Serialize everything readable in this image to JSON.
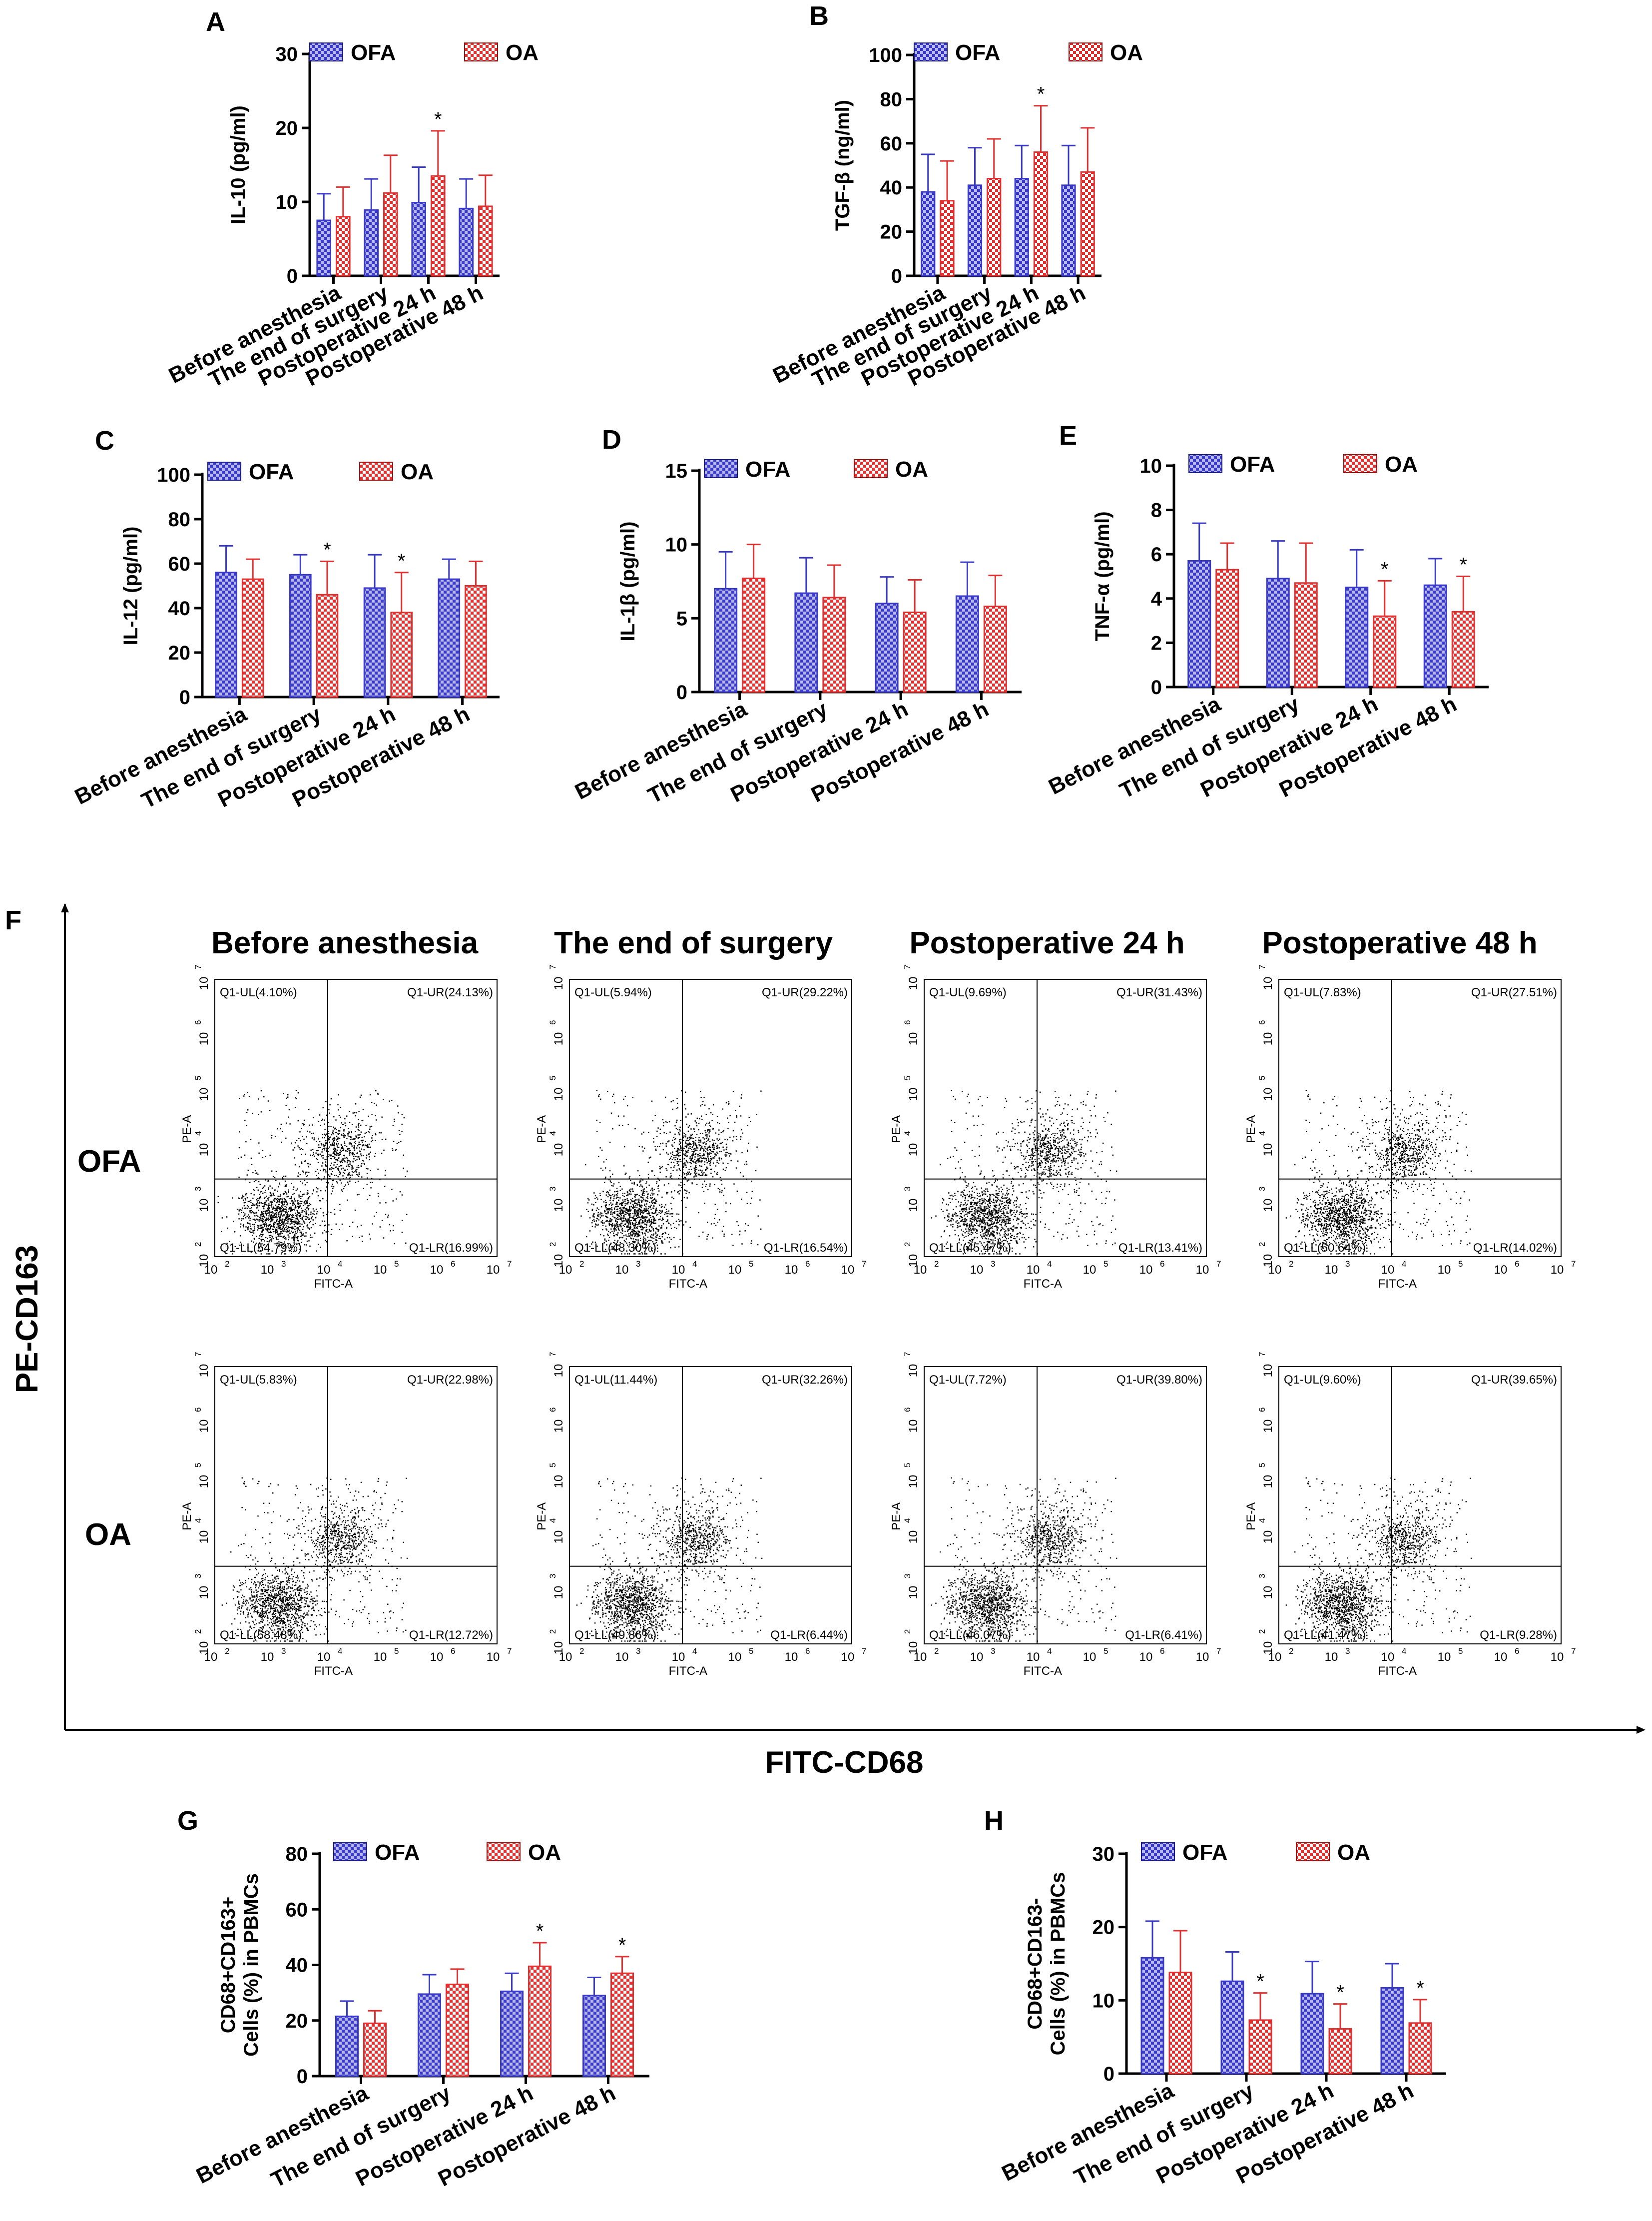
{
  "colors": {
    "ofa": "#3a3ac8",
    "ofa_dark": "#1a1a8a",
    "oa": "#e03030",
    "oa_dark": "#a01010",
    "axis": "#000000"
  },
  "chart_data": [
    {
      "id": "A",
      "type": "bar",
      "panel_label": "A",
      "ylabel": "IL-10 (pg/ml)",
      "ylim": [
        0,
        30
      ],
      "yticks": [
        0,
        10,
        20,
        30
      ],
      "categories": [
        "Before anesthesia",
        "The end of surgery",
        "Postoperative 24 h",
        "Postoperative 48 h"
      ],
      "series": [
        {
          "name": "OFA",
          "values": [
            7.5,
            8.9,
            9.9,
            9.1
          ],
          "errors": [
            3.6,
            4.2,
            4.8,
            4.0
          ]
        },
        {
          "name": "OA",
          "values": [
            8.0,
            11.2,
            13.5,
            9.4
          ],
          "errors": [
            4.0,
            5.1,
            6.1,
            4.2
          ]
        }
      ],
      "significant": [
        [
          1,
          2
        ]
      ]
    },
    {
      "id": "B",
      "type": "bar",
      "panel_label": "B",
      "ylabel": "TGF-β (ng/ml)",
      "ylim": [
        0,
        100
      ],
      "yticks": [
        0,
        20,
        40,
        60,
        80,
        100
      ],
      "categories": [
        "Before anesthesia",
        "The end of surgery",
        "Postoperative 24 h",
        "Postoperative 48 h"
      ],
      "series": [
        {
          "name": "OFA",
          "values": [
            38,
            41,
            44,
            41
          ],
          "errors": [
            17,
            17,
            15,
            18
          ]
        },
        {
          "name": "OA",
          "values": [
            34,
            44,
            56,
            47
          ],
          "errors": [
            18,
            18,
            21,
            20
          ]
        }
      ],
      "significant": [
        [
          1,
          2
        ]
      ]
    },
    {
      "id": "C",
      "type": "bar",
      "panel_label": "C",
      "ylabel": "IL-12 (pg/ml)",
      "ylim": [
        0,
        100
      ],
      "yticks": [
        0,
        20,
        40,
        60,
        80,
        100
      ],
      "categories": [
        "Before anesthesia",
        "The end of surgery",
        "Postoperative 24 h",
        "Postoperative 48 h"
      ],
      "series": [
        {
          "name": "OFA",
          "values": [
            56,
            55,
            49,
            53
          ],
          "errors": [
            12,
            9,
            15,
            9
          ]
        },
        {
          "name": "OA",
          "values": [
            53,
            46,
            38,
            50
          ],
          "errors": [
            9,
            15,
            18,
            11
          ]
        }
      ],
      "significant": [
        [
          1,
          1
        ],
        [
          1,
          2
        ]
      ]
    },
    {
      "id": "D",
      "type": "bar",
      "panel_label": "D",
      "ylabel": "IL-1β (pg/ml)",
      "ylim": [
        0,
        15
      ],
      "yticks": [
        0,
        5,
        10,
        15
      ],
      "categories": [
        "Before anesthesia",
        "The end of surgery",
        "Postoperative 24 h",
        "Postoperative 48 h"
      ],
      "series": [
        {
          "name": "OFA",
          "values": [
            7.0,
            6.7,
            6.0,
            6.5
          ],
          "errors": [
            2.5,
            2.4,
            1.8,
            2.3
          ]
        },
        {
          "name": "OA",
          "values": [
            7.7,
            6.4,
            5.4,
            5.8
          ],
          "errors": [
            2.3,
            2.2,
            2.2,
            2.1
          ]
        }
      ],
      "significant": []
    },
    {
      "id": "E",
      "type": "bar",
      "panel_label": "E",
      "ylabel": "TNF-α (pg/ml)",
      "ylim": [
        0,
        10
      ],
      "yticks": [
        0,
        2,
        4,
        6,
        8,
        10
      ],
      "categories": [
        "Before anesthesia",
        "The end of surgery",
        "Postoperative 24 h",
        "Postoperative 48 h"
      ],
      "series": [
        {
          "name": "OFA",
          "values": [
            5.7,
            4.9,
            4.5,
            4.6
          ],
          "errors": [
            1.7,
            1.7,
            1.7,
            1.2
          ]
        },
        {
          "name": "OA",
          "values": [
            5.3,
            4.7,
            3.2,
            3.4
          ],
          "errors": [
            1.2,
            1.8,
            1.6,
            1.6
          ]
        }
      ],
      "significant": [
        [
          1,
          2
        ],
        [
          1,
          3
        ]
      ]
    },
    {
      "id": "G",
      "type": "bar",
      "panel_label": "G",
      "ylabel_lines": [
        "CD68+CD163+",
        "Cells (%) in PBMCs"
      ],
      "ylim": [
        0,
        80
      ],
      "yticks": [
        0,
        20,
        40,
        60,
        80
      ],
      "categories": [
        "Before anesthesia",
        "The end of surgery",
        "Postoperative 24 h",
        "Postoperative 48 h"
      ],
      "series": [
        {
          "name": "OFA",
          "values": [
            21.5,
            29.5,
            30.5,
            29.0
          ],
          "errors": [
            5.5,
            7.0,
            6.5,
            6.5
          ]
        },
        {
          "name": "OA",
          "values": [
            19.0,
            33.0,
            39.5,
            37.0
          ],
          "errors": [
            4.5,
            5.5,
            8.5,
            6.0
          ]
        }
      ],
      "significant": [
        [
          1,
          2
        ],
        [
          1,
          3
        ]
      ]
    },
    {
      "id": "H",
      "type": "bar",
      "panel_label": "H",
      "ylabel_lines": [
        "CD68+CD163-",
        "Cells (%) in PBMCs"
      ],
      "ylim": [
        0,
        30
      ],
      "yticks": [
        0,
        10,
        20,
        30
      ],
      "categories": [
        "Before anesthesia",
        "The end of surgery",
        "Postoperative 24 h",
        "Postoperative 48 h"
      ],
      "series": [
        {
          "name": "OFA",
          "values": [
            15.8,
            12.6,
            10.9,
            11.7
          ],
          "errors": [
            5.0,
            4.0,
            4.4,
            3.3
          ]
        },
        {
          "name": "OA",
          "values": [
            13.8,
            7.3,
            6.1,
            6.9
          ],
          "errors": [
            5.7,
            3.7,
            3.4,
            3.2
          ]
        }
      ],
      "significant": [
        [
          1,
          1
        ],
        [
          1,
          2
        ],
        [
          1,
          3
        ]
      ]
    },
    {
      "id": "F",
      "type": "scatter",
      "panel_label": "F",
      "ylabel": "PE-CD163",
      "xlabel": "FITC-CD68",
      "column_titles": [
        "Before anesthesia",
        "The end of surgery",
        "Postoperative 24 h",
        "Postoperative 48 h"
      ],
      "row_labels": [
        "OFA",
        "OA"
      ],
      "plot_xlabel": "FITC-A",
      "plot_ylabel": "PE-A",
      "xtick_labels": [
        "10",
        "10",
        "10",
        "10",
        "10",
        "10"
      ],
      "xtick_exponents": [
        "2",
        "3",
        "4",
        "5",
        "6",
        "7"
      ],
      "ytick_labels": [
        "10",
        "10",
        "10",
        "10",
        "10",
        "10"
      ],
      "ytick_exponents": [
        "2",
        "3",
        "4",
        "5",
        "6",
        "7"
      ],
      "quadrants": [
        [
          {
            "UL": "Q1-UL(4.10%)",
            "UR": "Q1-UR(24.13%)",
            "LL": "Q1-LL(54.79%)",
            "LR": "Q1-LR(16.99%)"
          },
          {
            "UL": "Q1-UL(5.94%)",
            "UR": "Q1-UR(29.22%)",
            "LL": "Q1-LL(48.30%)",
            "LR": "Q1-LR(16.54%)"
          },
          {
            "UL": "Q1-UL(9.69%)",
            "UR": "Q1-UR(31.43%)",
            "LL": "Q1-LL(45.47%)",
            "LR": "Q1-LR(13.41%)"
          },
          {
            "UL": "Q1-UL(7.83%)",
            "UR": "Q1-UR(27.51%)",
            "LL": "Q1-LL(50.64%)",
            "LR": "Q1-LR(14.02%)"
          }
        ],
        [
          {
            "UL": "Q1-UL(5.83%)",
            "UR": "Q1-UR(22.98%)",
            "LL": "Q1-LL(58.48%)",
            "LR": "Q1-LR(12.72%)"
          },
          {
            "UL": "Q1-UL(11.44%)",
            "UR": "Q1-UR(32.26%)",
            "LL": "Q1-LL(49.86%)",
            "LR": "Q1-LR(6.44%)"
          },
          {
            "UL": "Q1-UL(7.72%)",
            "UR": "Q1-UR(39.80%)",
            "LL": "Q1-LL(46.07%)",
            "LR": "Q1-LR(6.41%)"
          },
          {
            "UL": "Q1-UL(9.60%)",
            "UR": "Q1-UR(39.65%)",
            "LL": "Q1-LL(41.47%)",
            "LR": "Q1-LR(9.28%)"
          }
        ]
      ]
    }
  ],
  "legend": {
    "ofa": "OFA",
    "oa": "OA"
  },
  "significance_marker": "*"
}
